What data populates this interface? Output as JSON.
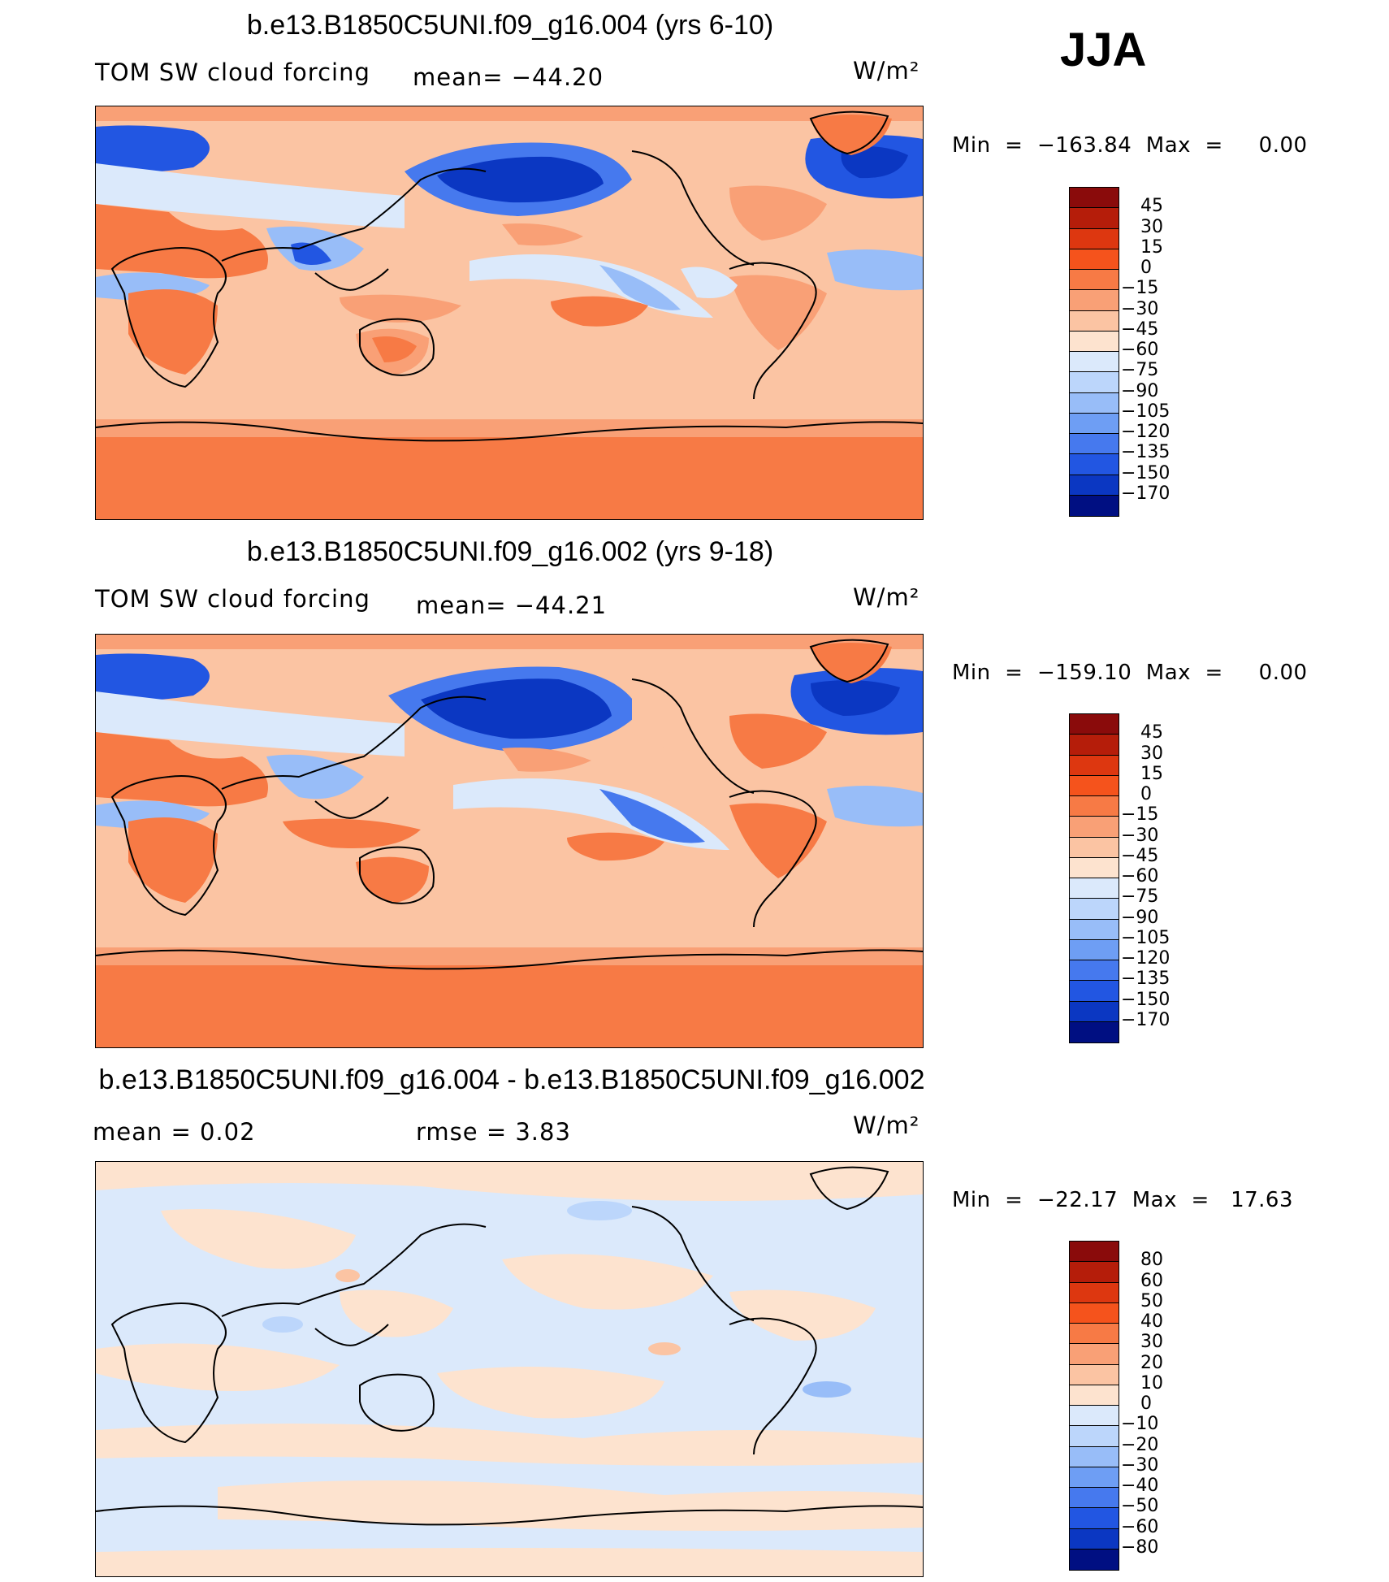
{
  "season": "JJA",
  "panels": [
    {
      "title": "b.e13.B1850C5UNI.f09_g16.004 (yrs 6-10)",
      "variable": "TOM SW cloud forcing",
      "stat_line": "mean= −44.20",
      "units": "W/m²",
      "minmax": "Min  =  −163.84  Max  =     0.00"
    },
    {
      "title": "b.e13.B1850C5UNI.f09_g16.002 (yrs 9-18)",
      "variable": "TOM SW cloud forcing",
      "stat_line": "mean= −44.21",
      "units": "W/m²",
      "minmax": "Min  =  −159.10  Max  =     0.00"
    },
    {
      "title": "b.e13.B1850C5UNI.f09_g16.004 - b.e13.B1850C5UNI.f09_g16.002",
      "mean_line": "mean  =     0.02",
      "rmse_line": "rmse  =     3.83",
      "units": "W/m²",
      "minmax": "Min  =  −22.17  Max  =   17.63"
    }
  ],
  "colorbars": {
    "field": {
      "labels": [
        "45",
        "30",
        "15",
        "0",
        "−15",
        "−30",
        "−45",
        "−60",
        "−75",
        "−90",
        "−105",
        "−120",
        "−135",
        "−150",
        "−170"
      ],
      "colors": [
        "#8a0b0b",
        "#b51d0a",
        "#dd3710",
        "#f5531c",
        "#f77a45",
        "#f9a076",
        "#fbc4a3",
        "#fde3cf",
        "#dbe9fb",
        "#bcd6fb",
        "#98bdf8",
        "#6e9ef4",
        "#4679ee",
        "#2256e2",
        "#0b37c2",
        "#000f82"
      ]
    },
    "diff": {
      "labels": [
        "80",
        "60",
        "50",
        "40",
        "30",
        "20",
        "10",
        "0",
        "−10",
        "−20",
        "−30",
        "−40",
        "−50",
        "−60",
        "−80"
      ],
      "colors": [
        "#8a0b0b",
        "#b51d0a",
        "#dd3710",
        "#f5531c",
        "#f77a45",
        "#f9a076",
        "#fbc4a3",
        "#fde3cf",
        "#dbe9fb",
        "#bcd6fb",
        "#98bdf8",
        "#6e9ef4",
        "#4679ee",
        "#2256e2",
        "#0b37c2",
        "#000f82"
      ]
    }
  },
  "map_palette": {
    "deep_blue": "#0b37c2",
    "blue": "#2256e2",
    "mid_blue": "#4679ee",
    "light_blue": "#98bdf8",
    "pale_blue": "#dbe9fb",
    "cream": "#fde3cf",
    "peach": "#fbc4a3",
    "salmon": "#f9a076",
    "orange": "#f77a45"
  }
}
